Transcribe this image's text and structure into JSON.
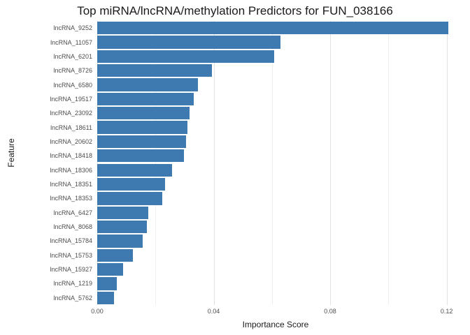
{
  "colors": {
    "bar": "#3e79b0",
    "grid_major": "#e2e2e2",
    "grid_minor": "#efefef",
    "text": "#1a1a1a",
    "tick_text": "#4d4d4d"
  },
  "chart_data": {
    "type": "bar",
    "orientation": "horizontal",
    "title": "Top miRNA/lncRNA/methylation Predictors for FUN_038166",
    "xlabel": "Importance Score",
    "ylabel": "Feature",
    "categories": [
      "lncRNA_9252",
      "lncRNA_11057",
      "lncRNA_6201",
      "lncRNA_8726",
      "lncRNA_6580",
      "lncRNA_19517",
      "lncRNA_23092",
      "lncRNA_18611",
      "lncRNA_20602",
      "lncRNA_18418",
      "lncRNA_18306",
      "lncRNA_18351",
      "lncRNA_18353",
      "lncRNA_6427",
      "lncRNA_8068",
      "lncRNA_15784",
      "lncRNA_15753",
      "lncRNA_15927",
      "lncRNA_1219",
      "lncRNA_5762"
    ],
    "values": [
      0.1205,
      0.063,
      0.0608,
      0.0395,
      0.0347,
      0.0331,
      0.0316,
      0.0311,
      0.0304,
      0.0297,
      0.0256,
      0.0232,
      0.0223,
      0.0175,
      0.017,
      0.0156,
      0.0122,
      0.0089,
      0.0067,
      0.0057
    ],
    "xlim": [
      0,
      0.1225
    ],
    "tick_values": [
      0,
      0.04,
      0.08,
      0.12
    ],
    "tick_labels": [
      "0.00",
      "0.04",
      "0.08",
      "0.12"
    ],
    "minor_tick_values": [
      0.02,
      0.06,
      0.1
    ],
    "grid": "vertical",
    "legend": "none"
  }
}
